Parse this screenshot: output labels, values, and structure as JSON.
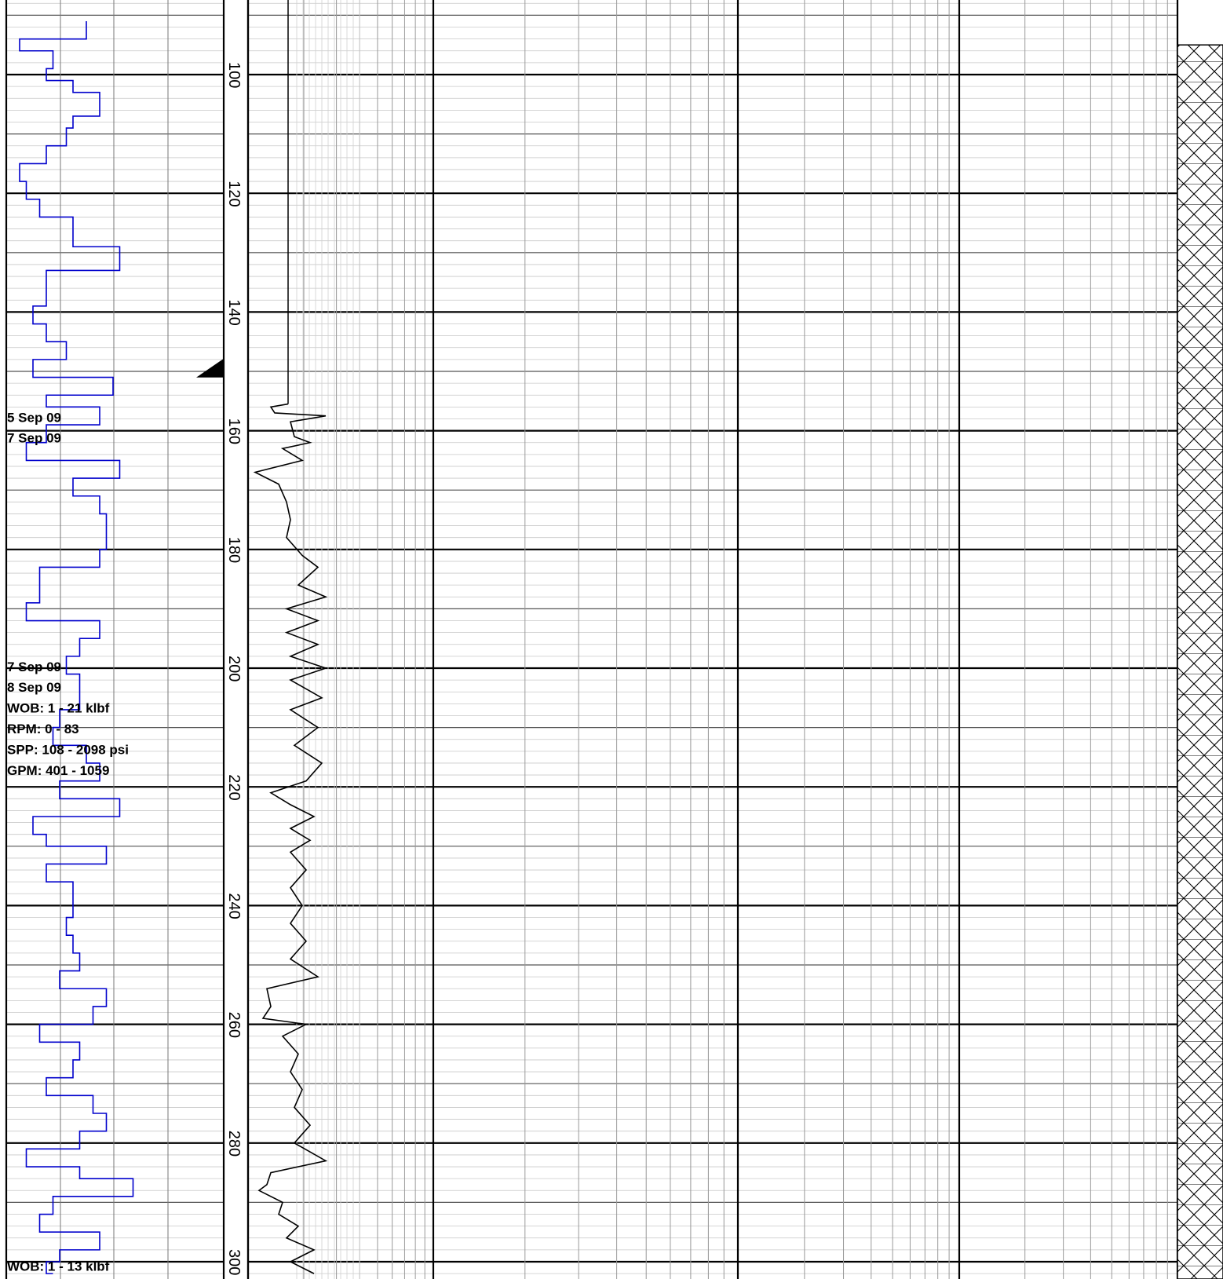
{
  "chart_data": {
    "type": "line",
    "title": "",
    "depth_axis": {
      "min": 87,
      "max": 302,
      "ticks": [
        100,
        120,
        140,
        160,
        180,
        200,
        220,
        240,
        260,
        280,
        300
      ]
    },
    "drilling_rate_track": {
      "color": "#0000cc",
      "series": [
        {
          "depth": 91,
          "value": 0.6
        },
        {
          "depth": 94,
          "value": 0.1
        },
        {
          "depth": 96,
          "value": 0.35
        },
        {
          "depth": 99,
          "value": 0.3
        },
        {
          "depth": 101,
          "value": 0.5
        },
        {
          "depth": 103,
          "value": 0.7
        },
        {
          "depth": 107,
          "value": 0.5
        },
        {
          "depth": 109,
          "value": 0.45
        },
        {
          "depth": 112,
          "value": 0.3
        },
        {
          "depth": 115,
          "value": 0.1
        },
        {
          "depth": 118,
          "value": 0.15
        },
        {
          "depth": 121,
          "value": 0.25
        },
        {
          "depth": 124,
          "value": 0.5
        },
        {
          "depth": 127,
          "value": 0.5
        },
        {
          "depth": 129,
          "value": 0.85
        },
        {
          "depth": 133,
          "value": 0.3
        },
        {
          "depth": 136,
          "value": 0.3
        },
        {
          "depth": 139,
          "value": 0.2
        },
        {
          "depth": 142,
          "value": 0.3
        },
        {
          "depth": 145,
          "value": 0.45
        },
        {
          "depth": 148,
          "value": 0.2
        },
        {
          "depth": 151,
          "value": 0.8
        },
        {
          "depth": 154,
          "value": 0.3
        },
        {
          "depth": 156,
          "value": 0.7
        },
        {
          "depth": 159,
          "value": 0.3
        },
        {
          "depth": 162,
          "value": 0.15
        },
        {
          "depth": 165,
          "value": 0.85
        },
        {
          "depth": 168,
          "value": 0.5
        },
        {
          "depth": 171,
          "value": 0.7
        },
        {
          "depth": 174,
          "value": 0.75
        },
        {
          "depth": 177,
          "value": 0.75
        },
        {
          "depth": 180,
          "value": 0.7
        },
        {
          "depth": 183,
          "value": 0.25
        },
        {
          "depth": 186,
          "value": 0.25
        },
        {
          "depth": 189,
          "value": 0.15
        },
        {
          "depth": 192,
          "value": 0.7
        },
        {
          "depth": 195,
          "value": 0.55
        },
        {
          "depth": 198,
          "value": 0.45
        },
        {
          "depth": 201,
          "value": 0.55
        },
        {
          "depth": 204,
          "value": 0.55
        },
        {
          "depth": 207,
          "value": 0.4
        },
        {
          "depth": 210,
          "value": 0.35
        },
        {
          "depth": 213,
          "value": 0.6
        },
        {
          "depth": 216,
          "value": 0.7
        },
        {
          "depth": 219,
          "value": 0.4
        },
        {
          "depth": 222,
          "value": 0.85
        },
        {
          "depth": 225,
          "value": 0.2
        },
        {
          "depth": 228,
          "value": 0.3
        },
        {
          "depth": 230,
          "value": 0.75
        },
        {
          "depth": 233,
          "value": 0.3
        },
        {
          "depth": 236,
          "value": 0.5
        },
        {
          "depth": 239,
          "value": 0.5
        },
        {
          "depth": 242,
          "value": 0.45
        },
        {
          "depth": 245,
          "value": 0.5
        },
        {
          "depth": 248,
          "value": 0.55
        },
        {
          "depth": 251,
          "value": 0.4
        },
        {
          "depth": 254,
          "value": 0.75
        },
        {
          "depth": 257,
          "value": 0.65
        },
        {
          "depth": 260,
          "value": 0.25
        },
        {
          "depth": 263,
          "value": 0.55
        },
        {
          "depth": 266,
          "value": 0.5
        },
        {
          "depth": 269,
          "value": 0.3
        },
        {
          "depth": 272,
          "value": 0.65
        },
        {
          "depth": 275,
          "value": 0.75
        },
        {
          "depth": 278,
          "value": 0.55
        },
        {
          "depth": 281,
          "value": 0.15
        },
        {
          "depth": 284,
          "value": 0.55
        },
        {
          "depth": 286,
          "value": 0.95
        },
        {
          "depth": 289,
          "value": 0.35
        },
        {
          "depth": 292,
          "value": 0.25
        },
        {
          "depth": 295,
          "value": 0.7
        },
        {
          "depth": 298,
          "value": 0.4
        },
        {
          "depth": 300,
          "value": 0.3
        },
        {
          "depth": 302,
          "value": 0.35
        }
      ]
    },
    "gamma_track": {
      "color": "#000000",
      "start_depth": 88,
      "straight_until": 155.5,
      "baseline": 0.47,
      "series": [
        {
          "depth": 155.5,
          "value": 0.47
        },
        {
          "depth": 156,
          "value": 0.25
        },
        {
          "depth": 157,
          "value": 0.3
        },
        {
          "depth": 157.5,
          "value": 0.95
        },
        {
          "depth": 158.5,
          "value": 0.5
        },
        {
          "depth": 161,
          "value": 0.55
        },
        {
          "depth": 162,
          "value": 0.75
        },
        {
          "depth": 163,
          "value": 0.4
        },
        {
          "depth": 165,
          "value": 0.65
        },
        {
          "depth": 167,
          "value": 0.05
        },
        {
          "depth": 169,
          "value": 0.35
        },
        {
          "depth": 172,
          "value": 0.45
        },
        {
          "depth": 175,
          "value": 0.5
        },
        {
          "depth": 178,
          "value": 0.45
        },
        {
          "depth": 181,
          "value": 0.65
        },
        {
          "depth": 183,
          "value": 0.85
        },
        {
          "depth": 186,
          "value": 0.6
        },
        {
          "depth": 188,
          "value": 0.95
        },
        {
          "depth": 190,
          "value": 0.45
        },
        {
          "depth": 192,
          "value": 0.85
        },
        {
          "depth": 194,
          "value": 0.45
        },
        {
          "depth": 196,
          "value": 0.85
        },
        {
          "depth": 198,
          "value": 0.5
        },
        {
          "depth": 200,
          "value": 0.95
        },
        {
          "depth": 202,
          "value": 0.5
        },
        {
          "depth": 205,
          "value": 0.9
        },
        {
          "depth": 207,
          "value": 0.5
        },
        {
          "depth": 210,
          "value": 0.85
        },
        {
          "depth": 213,
          "value": 0.55
        },
        {
          "depth": 216,
          "value": 0.9
        },
        {
          "depth": 219,
          "value": 0.7
        },
        {
          "depth": 221,
          "value": 0.25
        },
        {
          "depth": 223,
          "value": 0.5
        },
        {
          "depth": 225,
          "value": 0.8
        },
        {
          "depth": 227,
          "value": 0.5
        },
        {
          "depth": 229,
          "value": 0.75
        },
        {
          "depth": 231,
          "value": 0.5
        },
        {
          "depth": 234,
          "value": 0.7
        },
        {
          "depth": 237,
          "value": 0.5
        },
        {
          "depth": 240,
          "value": 0.65
        },
        {
          "depth": 243,
          "value": 0.5
        },
        {
          "depth": 246,
          "value": 0.7
        },
        {
          "depth": 249,
          "value": 0.5
        },
        {
          "depth": 252,
          "value": 0.85
        },
        {
          "depth": 254,
          "value": 0.2
        },
        {
          "depth": 257,
          "value": 0.25
        },
        {
          "depth": 259,
          "value": 0.15
        },
        {
          "depth": 260,
          "value": 0.7
        },
        {
          "depth": 262,
          "value": 0.4
        },
        {
          "depth": 265,
          "value": 0.6
        },
        {
          "depth": 268,
          "value": 0.5
        },
        {
          "depth": 271,
          "value": 0.65
        },
        {
          "depth": 274,
          "value": 0.55
        },
        {
          "depth": 277,
          "value": 0.75
        },
        {
          "depth": 280,
          "value": 0.55
        },
        {
          "depth": 283,
          "value": 0.95
        },
        {
          "depth": 285,
          "value": 0.25
        },
        {
          "depth": 287,
          "value": 0.2
        },
        {
          "depth": 288,
          "value": 0.1
        },
        {
          "depth": 290,
          "value": 0.4
        },
        {
          "depth": 292,
          "value": 0.35
        },
        {
          "depth": 294,
          "value": 0.6
        },
        {
          "depth": 296,
          "value": 0.45
        },
        {
          "depth": 298,
          "value": 0.8
        },
        {
          "depth": 300,
          "value": 0.5
        },
        {
          "depth": 302,
          "value": 0.8
        }
      ]
    },
    "marker_depth": 150.5,
    "annotations": [
      {
        "depth": 158.5,
        "text": "5 Sep 09"
      },
      {
        "depth": 162,
        "text": "7 Sep 09"
      },
      {
        "depth": 200.5,
        "text": "7 Sep 09"
      },
      {
        "depth": 204,
        "text": "8 Sep 09"
      },
      {
        "depth": 207.5,
        "text": "WOB: 1 - 21 klbf"
      },
      {
        "depth": 211,
        "text": "RPM: 0 - 83"
      },
      {
        "depth": 214.5,
        "text": "SPP:  108 - 2098 psi"
      },
      {
        "depth": 218,
        "text": "GPM: 401 - 1059"
      },
      {
        "depth": 301.5,
        "text": "WOB: 1 - 13 klbf"
      }
    ],
    "lithology": {
      "pattern": "cross-hatch",
      "start_depth": 95
    }
  }
}
